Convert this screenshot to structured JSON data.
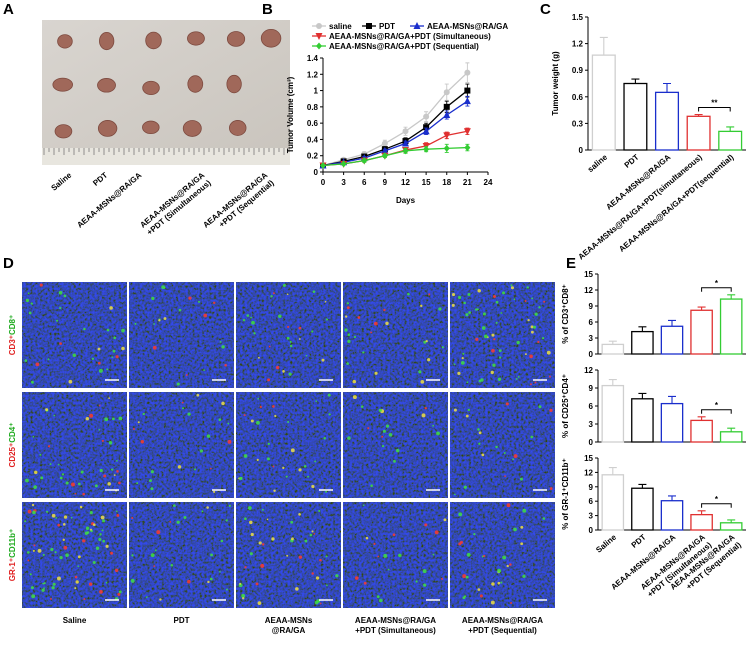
{
  "panel_labels": [
    "A",
    "B",
    "C",
    "D",
    "E"
  ],
  "photo": {
    "labels": [
      "Saline",
      "PDT",
      "AEAA-MSNs@RA/GA",
      [
        "AEAA-MSNs@RA/GA",
        "+PDT (Simultaneous)"
      ],
      [
        "AEAA-MSNs@RA/GA",
        "+PDT (Sequential)"
      ]
    ]
  },
  "staining": {
    "row_labels": [
      [
        "CD3⁺",
        "CD8⁺"
      ],
      [
        "CD25⁺",
        "CD4⁺"
      ],
      [
        "GR-1⁺",
        "CD11b⁺"
      ]
    ],
    "row_label_colors": [
      "#e02020",
      "#1faa1f"
    ],
    "column_labels": [
      [
        "Saline"
      ],
      [
        "PDT"
      ],
      [
        "AEAA-MSNs",
        "@RA/GA"
      ],
      [
        "AEAA-MSNs@RA/GA",
        "+PDT (Simultaneous)"
      ],
      [
        "AEAA-MSNs@RA/GA",
        "+PDT (Sequential)"
      ]
    ]
  },
  "chart_data": [
    {
      "type": "line",
      "xlabel": "Days",
      "ylabel": "Tumor Volume (cm³)",
      "x": [
        0,
        3,
        6,
        9,
        12,
        15,
        18,
        21
      ],
      "xlim": [
        0,
        24
      ],
      "xticks": [
        0,
        3,
        6,
        9,
        12,
        15,
        18,
        21,
        24
      ],
      "ylim": [
        0,
        1.4
      ],
      "yticks": [
        0,
        0.2,
        0.4,
        0.6,
        0.8,
        1.0,
        1.2,
        1.4
      ],
      "series": [
        {
          "name": "saline",
          "color": "#c8c8c8",
          "marker": "circle",
          "values": [
            0.08,
            0.15,
            0.22,
            0.35,
            0.5,
            0.68,
            0.98,
            1.22
          ],
          "errors": [
            0.01,
            0.02,
            0.03,
            0.04,
            0.05,
            0.06,
            0.1,
            0.12
          ]
        },
        {
          "name": "PDT",
          "color": "#000000",
          "marker": "square",
          "values": [
            0.08,
            0.13,
            0.19,
            0.28,
            0.38,
            0.55,
            0.8,
            1.0
          ],
          "errors": [
            0.01,
            0.01,
            0.02,
            0.03,
            0.04,
            0.05,
            0.07,
            0.08
          ]
        },
        {
          "name": "AEAA-MSNs@RA/GA",
          "color": "#1a2ecc",
          "marker": "triangle-up",
          "values": [
            0.08,
            0.12,
            0.17,
            0.26,
            0.35,
            0.5,
            0.7,
            0.87
          ],
          "errors": [
            0.01,
            0.01,
            0.02,
            0.02,
            0.03,
            0.04,
            0.05,
            0.06
          ]
        },
        {
          "name": "AEAA-MSNs@RA/GA+PDT (Simultaneous)",
          "color": "#e03030",
          "marker": "triangle-down",
          "values": [
            0.08,
            0.1,
            0.14,
            0.2,
            0.27,
            0.32,
            0.45,
            0.5
          ],
          "errors": [
            0.01,
            0.01,
            0.02,
            0.02,
            0.03,
            0.04,
            0.04,
            0.04
          ]
        },
        {
          "name": "AEAA-MSNs@RA/GA+PDT (Sequential)",
          "color": "#33cc33",
          "marker": "diamond",
          "values": [
            0.08,
            0.1,
            0.14,
            0.2,
            0.26,
            0.28,
            0.29,
            0.3
          ],
          "errors": [
            0.01,
            0.01,
            0.02,
            0.02,
            0.03,
            0.03,
            0.05,
            0.04
          ]
        }
      ]
    },
    {
      "type": "bar",
      "ylabel": "Tumor weight (g)",
      "categories": [
        "saline",
        "PDT",
        "AEAA-MSNs@RA/GA",
        "AEAA-MSNs@RA/GA+PDT(simultaneous)",
        "AEAA-MSNs@RA/GA+PDT(sequential)"
      ],
      "values": [
        1.07,
        0.75,
        0.65,
        0.38,
        0.21
      ],
      "errors": [
        0.2,
        0.05,
        0.1,
        0.02,
        0.05
      ],
      "colors": [
        "#cfcfcf",
        "#000000",
        "#1a2ecc",
        "#e03030",
        "#33cc33"
      ],
      "ylim": [
        0,
        1.5
      ],
      "yticks": [
        0,
        0.3,
        0.6,
        0.9,
        1.2,
        1.5
      ],
      "annotations": [
        {
          "text": "**",
          "between": [
            3,
            4
          ]
        }
      ]
    },
    {
      "type": "bar",
      "ylabel": "% of CD3⁺CD8⁺",
      "values": [
        1.8,
        4.2,
        5.2,
        8.2,
        10.3
      ],
      "errors": [
        0.6,
        0.9,
        1.1,
        0.6,
        0.8
      ],
      "colors": [
        "#cfcfcf",
        "#000000",
        "#1a2ecc",
        "#e03030",
        "#33cc33"
      ],
      "ylim": [
        0,
        15
      ],
      "yticks": [
        0,
        3,
        6,
        9,
        12,
        15
      ],
      "annotations": [
        {
          "text": "*",
          "between": [
            3,
            4
          ]
        }
      ]
    },
    {
      "type": "bar",
      "ylabel": "% of CD25⁺CD4⁺",
      "values": [
        9.4,
        7.2,
        6.4,
        3.6,
        1.7
      ],
      "errors": [
        1.0,
        0.9,
        1.2,
        0.6,
        0.6
      ],
      "colors": [
        "#cfcfcf",
        "#000000",
        "#1a2ecc",
        "#e03030",
        "#33cc33"
      ],
      "ylim": [
        0,
        12
      ],
      "yticks": [
        0,
        3,
        6,
        9,
        12
      ],
      "annotations": [
        {
          "text": "*",
          "between": [
            3,
            4
          ]
        }
      ]
    },
    {
      "type": "bar",
      "ylabel": "% of GR-1⁺CD11b⁺",
      "categories": [
        [
          "Saline"
        ],
        [
          "PDT"
        ],
        [
          "AEAA-MSNs@RA/GA"
        ],
        [
          "AEAA-MSNs@RA/GA",
          "+PDT (Simultaneous)"
        ],
        [
          "AEAA-MSNs@RA/GA",
          "+PDT (Sequential)"
        ]
      ],
      "values": [
        11.5,
        8.7,
        6.1,
        3.2,
        1.5
      ],
      "errors": [
        1.5,
        0.8,
        1.0,
        0.8,
        0.6
      ],
      "colors": [
        "#cfcfcf",
        "#000000",
        "#1a2ecc",
        "#e03030",
        "#33cc33"
      ],
      "ylim": [
        0,
        15
      ],
      "yticks": [
        0,
        3,
        6,
        9,
        12,
        15
      ],
      "annotations": [
        {
          "text": "*",
          "between": [
            3,
            4
          ]
        }
      ]
    }
  ]
}
